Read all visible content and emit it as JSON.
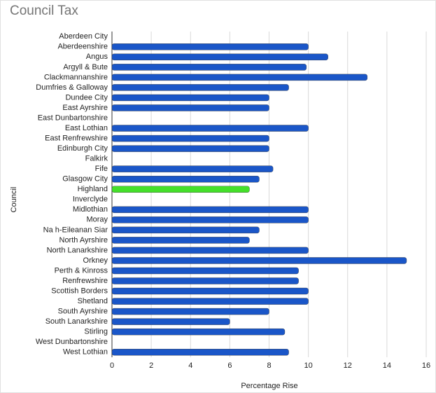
{
  "chart_data": {
    "type": "hbar",
    "title": "Council Tax",
    "x_label": "Percentage Rise",
    "y_label": "Council",
    "categories": [
      "Aberdeen City",
      "Aberdeenshire",
      "Angus",
      "Argyll & Bute",
      "Clackmannanshire",
      "Dumfries & Galloway",
      "Dundee City",
      "East Ayrshire",
      "East Dunbartonshire",
      "East Lothian",
      "East Renfrewshire",
      "Edinburgh City",
      "Falkirk",
      "Fife",
      "Glasgow City",
      "Highland",
      "Inverclyde",
      "Midlothian",
      "Moray",
      "Na h-Eileanan Siar",
      "North Ayrshire",
      "North Lanarkshire",
      "Orkney",
      "Perth & Kinross",
      "Renfrewshire",
      "Scottish Borders",
      "Shetland",
      "South Ayrshire",
      "South Lanarkshire",
      "Stirling",
      "West Dunbartonshire",
      "West Lothian"
    ],
    "values": [
      null,
      10,
      11,
      9.9,
      13,
      9,
      8,
      8,
      null,
      10,
      8,
      8,
      null,
      8.2,
      7.5,
      7,
      null,
      10,
      10,
      7.5,
      7,
      10,
      15,
      9.5,
      9.5,
      10,
      10,
      8,
      6,
      8.8,
      null,
      9
    ],
    "colors": [
      "#1a56c8",
      "#1a56c8",
      "#1a56c8",
      "#1a56c8",
      "#1a56c8",
      "#1a56c8",
      "#1a56c8",
      "#1a56c8",
      "#1a56c8",
      "#1a56c8",
      "#1a56c8",
      "#1a56c8",
      "#1a56c8",
      "#1a56c8",
      "#1a56c8",
      "#44e02a",
      "#1a56c8",
      "#1a56c8",
      "#1a56c8",
      "#1a56c8",
      "#1a56c8",
      "#1a56c8",
      "#1a56c8",
      "#1a56c8",
      "#1a56c8",
      "#1a56c8",
      "#1a56c8",
      "#1a56c8",
      "#1a56c8",
      "#1a56c8",
      "#1a56c8",
      "#1a56c8"
    ],
    "xlim": [
      0,
      16
    ],
    "xticks": [
      0,
      2,
      4,
      6,
      8,
      10,
      12,
      14,
      16
    ],
    "grid": true
  }
}
